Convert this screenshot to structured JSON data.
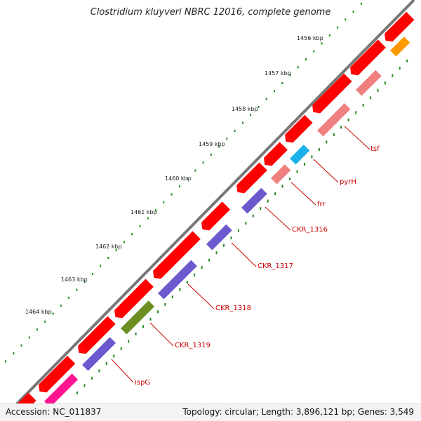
{
  "title": "Clostridium kluyveri NBRC 12016, complete genome",
  "footer": {
    "accession": "Accession: NC_011837",
    "summary": "Topology: circular; Length: 3,896,121 bp; Genes: 3,549"
  },
  "ticks": [
    {
      "label": "1456 kbp"
    },
    {
      "label": "1457 kbp"
    },
    {
      "label": "1458 kbp"
    },
    {
      "label": "1459 kbp"
    },
    {
      "label": "1460 kbp"
    },
    {
      "label": "1461 kbp"
    },
    {
      "label": "1462 kbp"
    },
    {
      "label": "1463 kbp"
    },
    {
      "label": "1464 kbp"
    }
  ],
  "gene_labels": [
    "tsf",
    "pyrH",
    "frr",
    "CKR_1316",
    "CKR_1317",
    "CKR_1318",
    "CKR_1319",
    "ispG"
  ],
  "colors": {
    "backbone": "#777777",
    "strand_feature": "#ff0000",
    "cds_pink": "#f08080",
    "cds_blue": "#1ab0e8",
    "cds_purple": "#6a5acd",
    "cds_olive": "#6b8e23",
    "cds_orange": "#ff9900",
    "cds_magenta": "#ff1493",
    "tick_dots": "#228b22",
    "label_color": "#cc0000"
  }
}
